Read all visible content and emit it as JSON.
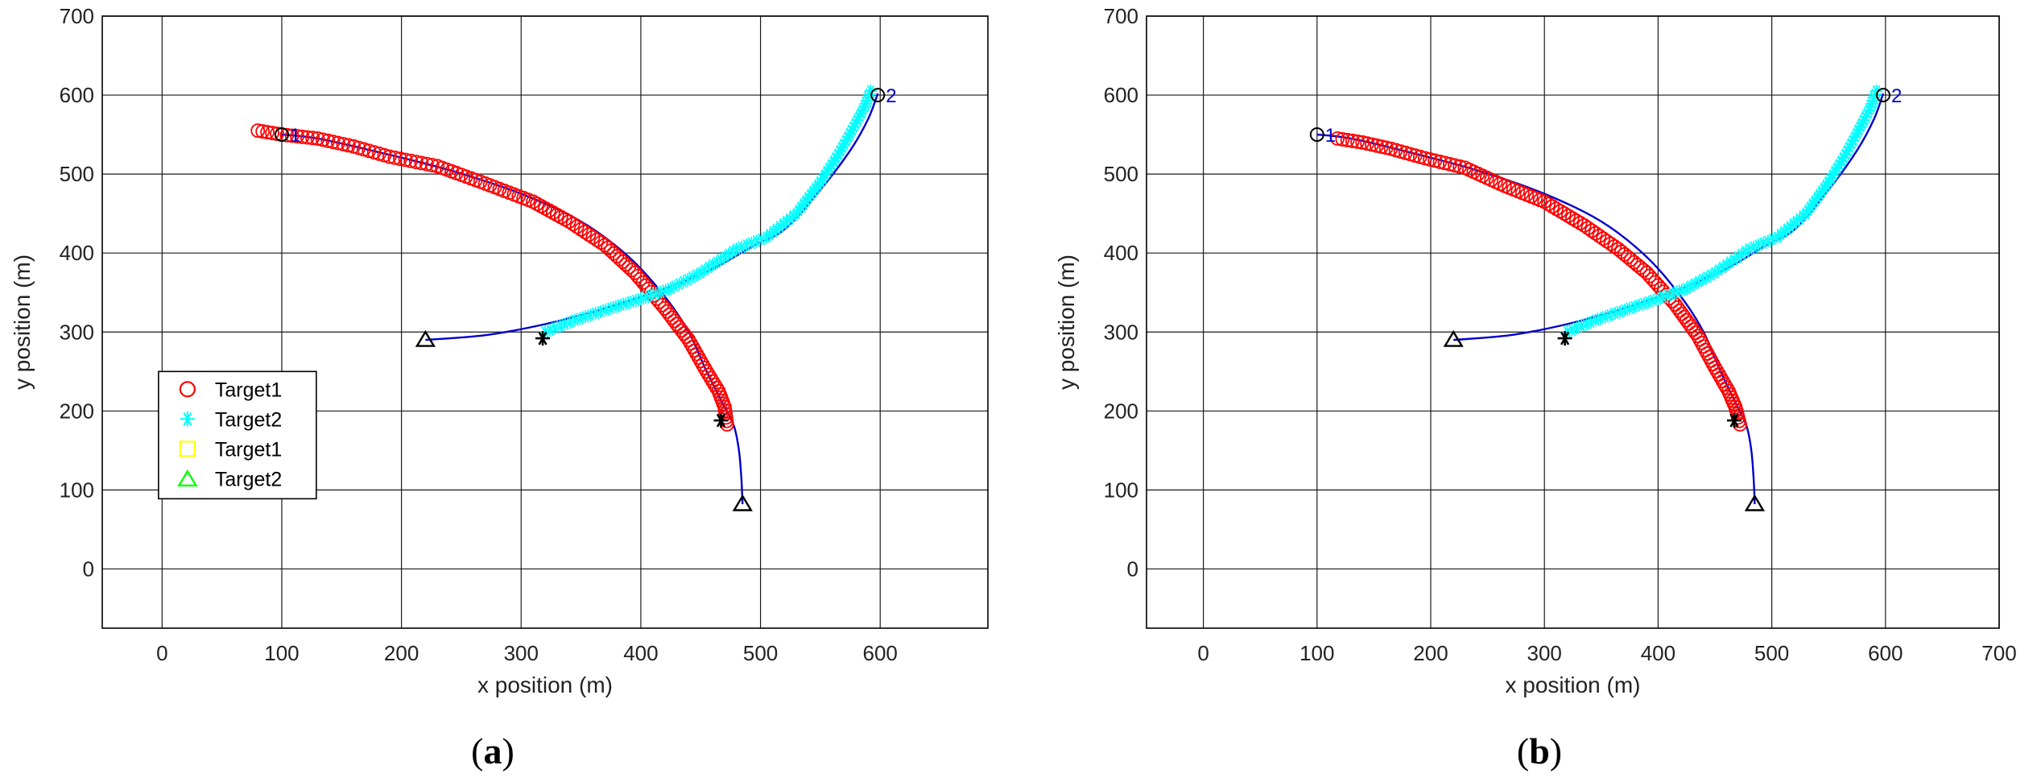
{
  "figure": {
    "panel_a": {
      "open": "(",
      "letter": "a",
      "close": ")"
    },
    "panel_b": {
      "open": "(",
      "letter": "b",
      "close": ")"
    }
  },
  "chart_data": [
    {
      "type": "line",
      "xlabel": "x position (m)",
      "ylabel": "y position (m)",
      "xlim": [
        -50,
        690
      ],
      "ylim": [
        -75,
        700
      ],
      "xticks": [
        0,
        100,
        200,
        300,
        400,
        500,
        600
      ],
      "yticks": [
        0,
        100,
        200,
        300,
        400,
        500,
        600,
        700
      ],
      "grid": true,
      "legend_position": "bottom-left",
      "legend": [
        {
          "label": "Target1",
          "marker": "circle",
          "color": "#ff0000"
        },
        {
          "label": "Target2",
          "marker": "asterisk",
          "color": "#00ffff"
        },
        {
          "label": "Target1",
          "marker": "square",
          "color": "#ffff00"
        },
        {
          "label": "Target2",
          "marker": "triangle",
          "color": "#00ff00"
        }
      ],
      "true_tracks": [
        {
          "x": [
            100,
            130,
            180,
            240,
            300,
            350,
            390,
            420,
            440,
            455,
            470,
            478,
            482,
            484,
            485
          ],
          "y": [
            550,
            545,
            528,
            505,
            475,
            440,
            395,
            345,
            300,
            250,
            205,
            180,
            150,
            115,
            82
          ],
          "color": "#0000cc"
        },
        {
          "x": [
            220,
            270,
            320,
            370,
            420,
            460,
            495,
            520,
            550,
            575,
            590,
            598
          ],
          "y": [
            290,
            296,
            310,
            330,
            355,
            380,
            410,
            430,
            480,
            530,
            570,
            602
          ],
          "color": "#0000cc"
        }
      ],
      "series": [
        {
          "name": "Target1",
          "marker": "circle",
          "color": "#ff0000",
          "x": [
            80,
            100,
            130,
            160,
            190,
            230,
            270,
            310,
            340,
            370,
            395,
            420,
            440,
            455,
            465,
            470,
            472
          ],
          "y": [
            555,
            550,
            545,
            535,
            522,
            510,
            488,
            465,
            440,
            410,
            375,
            330,
            290,
            250,
            225,
            205,
            183
          ]
        },
        {
          "name": "Target2",
          "marker": "asterisk",
          "color": "#00ffff",
          "x": [
            320,
            345,
            375,
            400,
            425,
            450,
            480,
            505,
            530,
            550,
            565,
            578,
            587,
            592
          ],
          "y": [
            300,
            315,
            330,
            342,
            355,
            375,
            405,
            420,
            450,
            490,
            525,
            560,
            585,
            605
          ]
        }
      ],
      "start_markers": [
        {
          "x": 100,
          "y": 550,
          "label": "1"
        },
        {
          "x": 598,
          "y": 600,
          "label": "2"
        }
      ],
      "star_markers": [
        {
          "x": 318,
          "y": 292
        },
        {
          "x": 467,
          "y": 188
        }
      ],
      "triangle_markers": [
        {
          "x": 220,
          "y": 290
        },
        {
          "x": 485,
          "y": 82
        }
      ]
    },
    {
      "type": "line",
      "xlabel": "x position (m)",
      "ylabel": "y position (m)",
      "xlim": [
        -50,
        700
      ],
      "ylim": [
        -75,
        700
      ],
      "xticks": [
        0,
        100,
        200,
        300,
        400,
        500,
        600,
        700
      ],
      "yticks": [
        0,
        100,
        200,
        300,
        400,
        500,
        600,
        700
      ],
      "grid": true,
      "true_tracks": [
        {
          "x": [
            100,
            130,
            180,
            240,
            300,
            350,
            390,
            420,
            440,
            455,
            470,
            478,
            482,
            484,
            485
          ],
          "y": [
            550,
            545,
            528,
            505,
            475,
            440,
            395,
            345,
            300,
            250,
            205,
            180,
            150,
            115,
            82
          ],
          "color": "#0000cc"
        },
        {
          "x": [
            220,
            270,
            320,
            370,
            420,
            460,
            495,
            520,
            550,
            575,
            590,
            598
          ],
          "y": [
            290,
            296,
            310,
            330,
            355,
            380,
            410,
            430,
            480,
            530,
            570,
            602
          ],
          "color": "#0000cc"
        }
      ],
      "series": [
        {
          "name": "Target1",
          "marker": "circle",
          "color": "#ff0000",
          "x": [
            118,
            140,
            165,
            195,
            230,
            265,
            300,
            335,
            365,
            390,
            415,
            435,
            450,
            462,
            468,
            472
          ],
          "y": [
            545,
            540,
            532,
            520,
            508,
            485,
            465,
            435,
            405,
            375,
            335,
            295,
            255,
            225,
            205,
            183
          ]
        },
        {
          "name": "Target2",
          "marker": "asterisk",
          "color": "#00ffff",
          "x": [
            320,
            345,
            375,
            400,
            425,
            450,
            480,
            505,
            530,
            550,
            565,
            578,
            587,
            592
          ],
          "y": [
            300,
            315,
            330,
            342,
            355,
            375,
            405,
            420,
            450,
            490,
            525,
            560,
            585,
            605
          ]
        }
      ],
      "start_markers": [
        {
          "x": 100,
          "y": 550,
          "label": "1"
        },
        {
          "x": 598,
          "y": 600,
          "label": "2"
        }
      ],
      "star_markers": [
        {
          "x": 318,
          "y": 292
        },
        {
          "x": 467,
          "y": 188
        }
      ],
      "triangle_markers": [
        {
          "x": 220,
          "y": 290
        },
        {
          "x": 485,
          "y": 82
        }
      ]
    }
  ]
}
